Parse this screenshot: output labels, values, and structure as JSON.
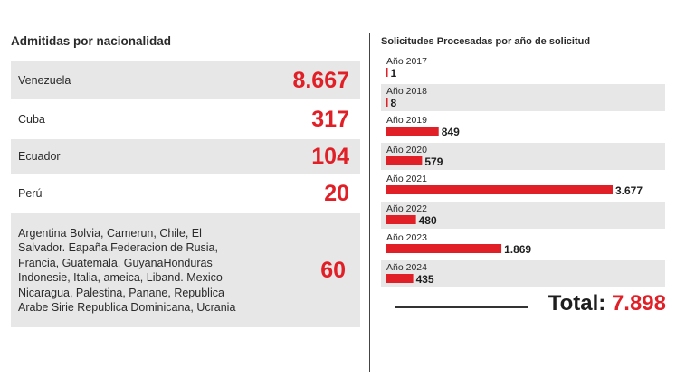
{
  "admitidas": {
    "title": "Admitidas por nacionalidad",
    "rows": [
      {
        "name": "Venezuela",
        "value": "8.667"
      },
      {
        "name": "Cuba",
        "value": "317"
      },
      {
        "name": "Ecuador",
        "value": "104"
      },
      {
        "name": "Perú",
        "value": "20"
      },
      {
        "name": "Argentina Bolvia, Camerun, Chile, El Salvador. Eapaña,Federacion de Rusia, Francia, Guatemala, GuyanaHonduras Indonesie, Italia, ameica, Liband. Mexico Nicaragua, Palestina, Panane, Republica Arabe Sirie Republica Dominicana, Ucrania",
        "value": "60"
      }
    ]
  },
  "colors": {
    "accent": "#e11f26",
    "row_shade": "#e7e7e7"
  },
  "chart_data": {
    "type": "bar",
    "orientation": "horizontal",
    "title": "Solicitudes Procesadas por año de solicitud",
    "categories": [
      "Año 2017",
      "Año 2018",
      "Año 2019",
      "Año 2020",
      "Año 2021",
      "Año 2022",
      "Año 2023",
      "Año 2024"
    ],
    "values": [
      1,
      8,
      849,
      579,
      3677,
      480,
      1869,
      435
    ],
    "value_labels": [
      "1",
      "8",
      "849",
      "579",
      "3.677",
      "480",
      "1.869",
      "435"
    ],
    "xlim": [
      0,
      3677
    ],
    "grid": false,
    "bar_color": "#e11f26"
  },
  "total": {
    "label": "Total:",
    "value": "7.898"
  }
}
